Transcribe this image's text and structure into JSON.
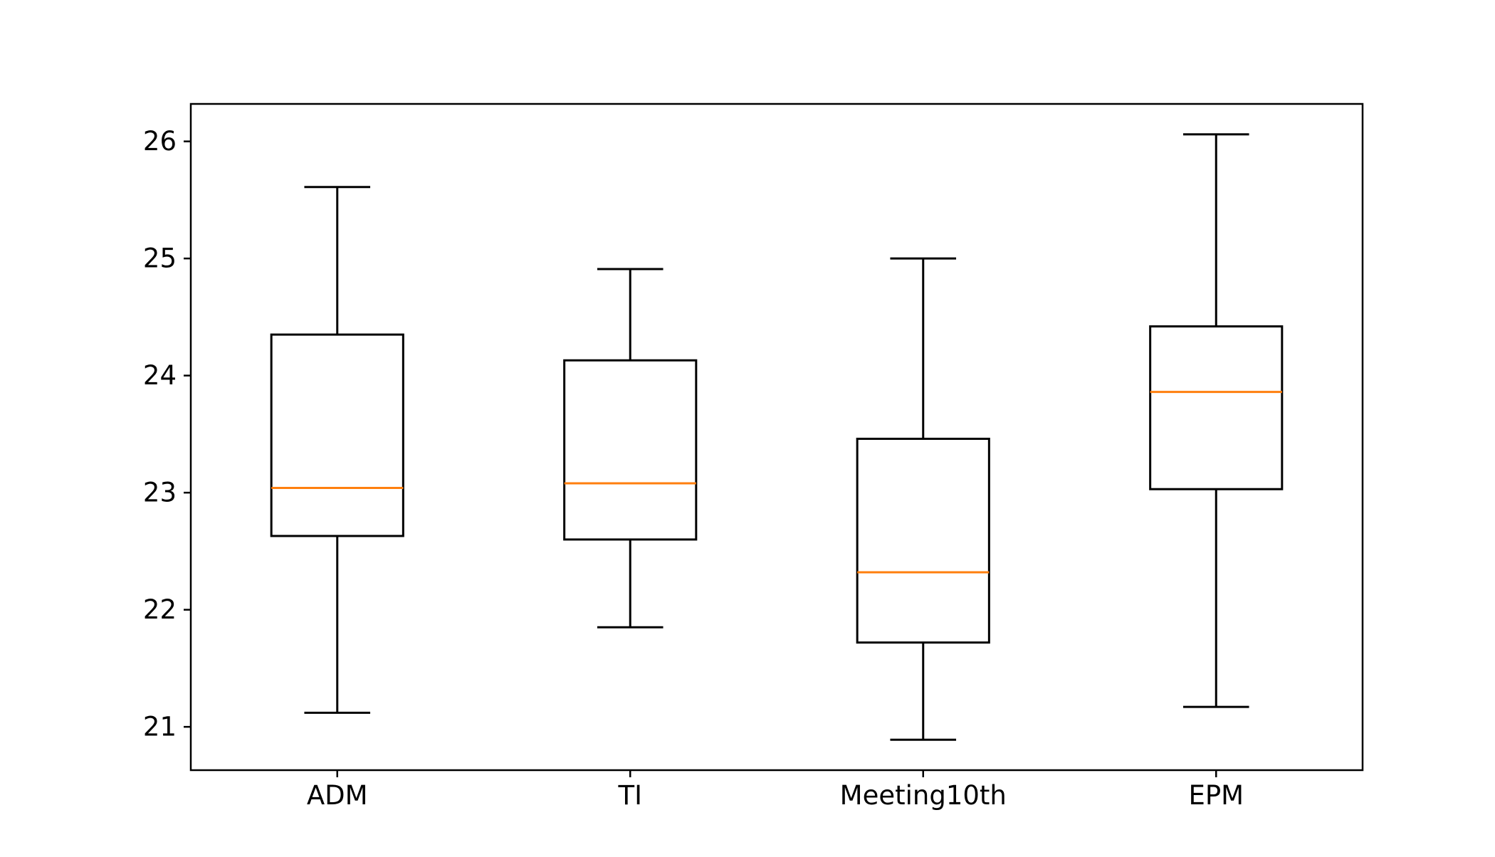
{
  "chart_data": {
    "type": "box",
    "title": "",
    "xlabel": "",
    "ylabel": "",
    "categories": [
      "ADM",
      "TI",
      "Meeting10th",
      "EPM"
    ],
    "boxes": [
      {
        "category": "ADM",
        "whisker_low": 21.12,
        "q1": 22.63,
        "median": 23.04,
        "q3": 24.35,
        "whisker_high": 25.61
      },
      {
        "category": "TI",
        "whisker_low": 21.85,
        "q1": 22.6,
        "median": 23.08,
        "q3": 24.13,
        "whisker_high": 24.91
      },
      {
        "category": "Meeting10th",
        "whisker_low": 20.89,
        "q1": 21.72,
        "median": 22.32,
        "q3": 23.46,
        "whisker_high": 25.0
      },
      {
        "category": "EPM",
        "whisker_low": 21.17,
        "q1": 23.03,
        "median": 23.86,
        "q3": 24.42,
        "whisker_high": 26.06
      }
    ],
    "ylim": [
      20.63,
      26.32
    ],
    "yticks": [
      21,
      22,
      23,
      24,
      25,
      26
    ],
    "ytick_labels": [
      "21",
      "22",
      "23",
      "24",
      "25",
      "26"
    ],
    "grid": false,
    "colors": {
      "box": "#000000",
      "median": "#ff7f0e",
      "axes": "#000000",
      "background": "#ffffff"
    }
  }
}
